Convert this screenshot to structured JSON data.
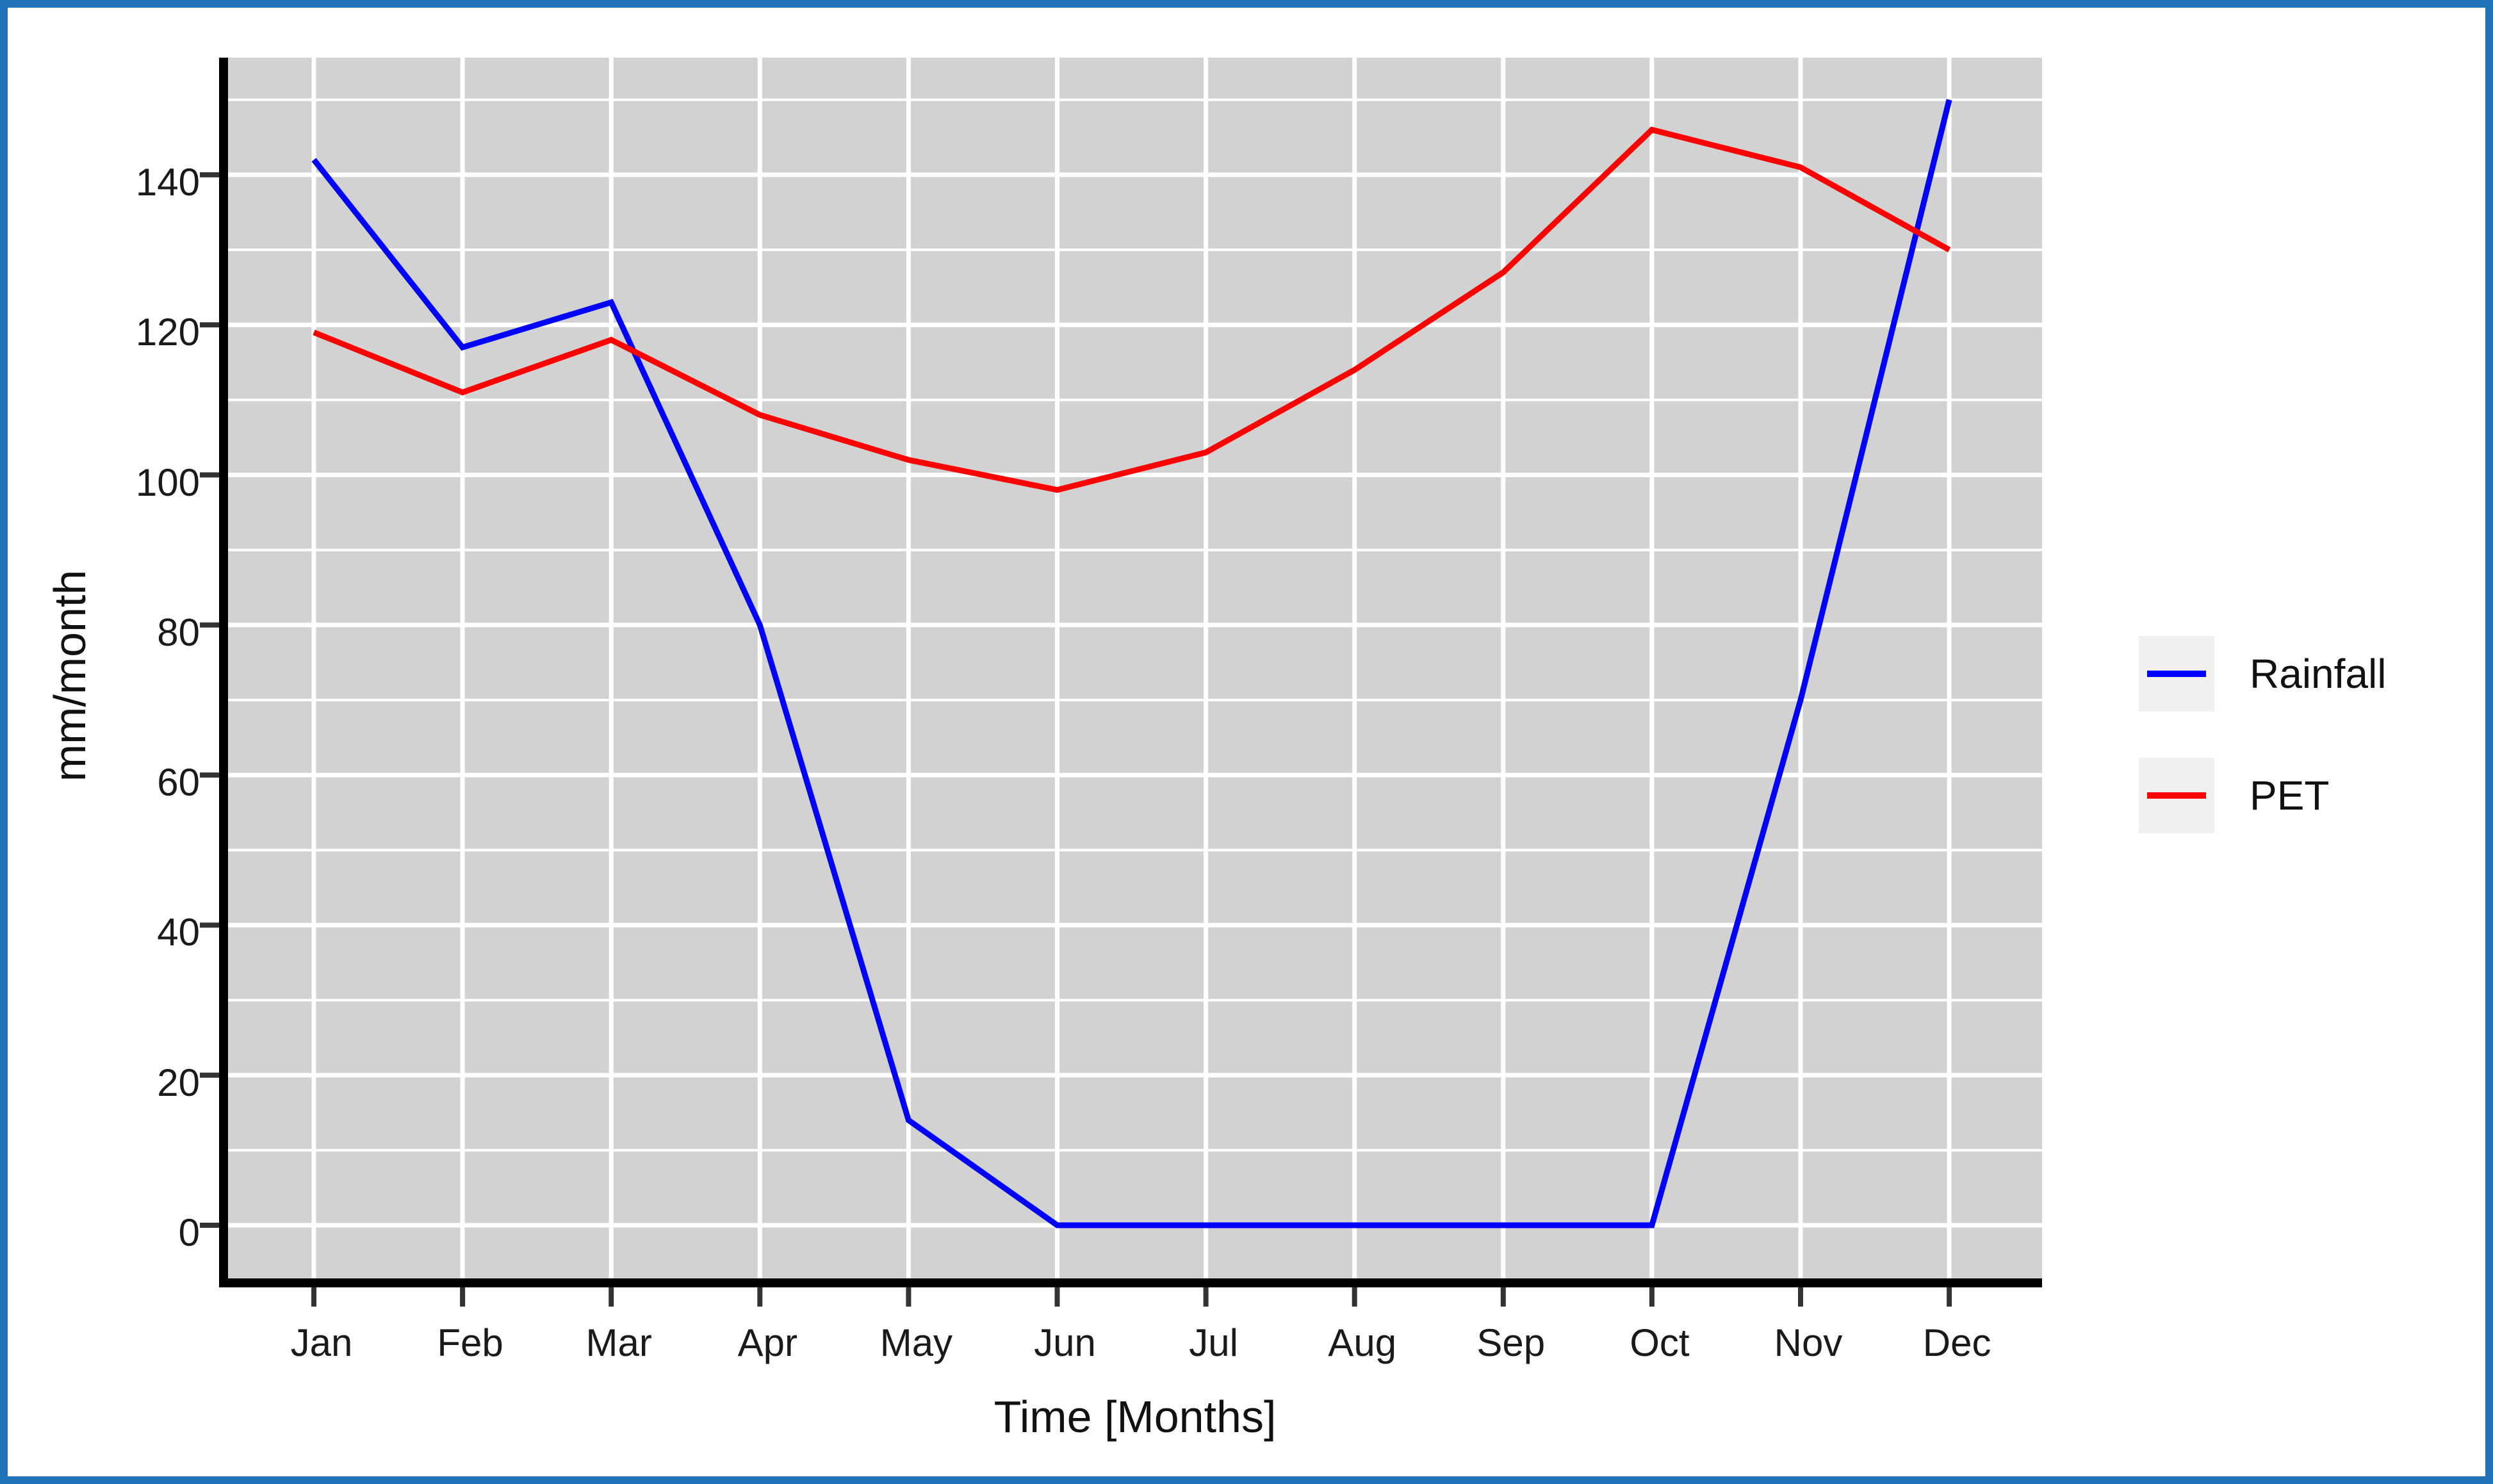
{
  "figure": {
    "border_color": "#2173b8",
    "panel_bg": "#d2d2d2",
    "grid_color": "#ffffff",
    "axis_color": "#000000",
    "tick_color": "#333333",
    "text_color": "#1a1a1a"
  },
  "chart_data": {
    "type": "line",
    "title": "",
    "categories": [
      "Jan",
      "Feb",
      "Mar",
      "Apr",
      "May",
      "Jun",
      "Jul",
      "Aug",
      "Sep",
      "Oct",
      "Nov",
      "Dec"
    ],
    "series": [
      {
        "name": "Rainfall",
        "color": "#0000ff",
        "values": [
          142,
          117,
          123,
          80,
          14,
          0,
          0,
          0,
          0,
          0,
          70,
          150
        ]
      },
      {
        "name": "PET",
        "color": "#ff0000",
        "values": [
          119,
          111,
          118,
          108,
          102,
          98,
          103,
          114,
          127,
          146,
          141,
          130
        ]
      }
    ],
    "xlabel": "Time [Months]",
    "ylabel": "mm/month",
    "yticks": [
      0,
      20,
      40,
      60,
      80,
      100,
      120,
      140
    ],
    "minor_yticks": [
      10,
      30,
      50,
      70,
      90,
      110,
      130,
      150
    ],
    "ylim": [
      -7,
      156
    ],
    "grid": "major+minor",
    "legend_position": "right"
  }
}
